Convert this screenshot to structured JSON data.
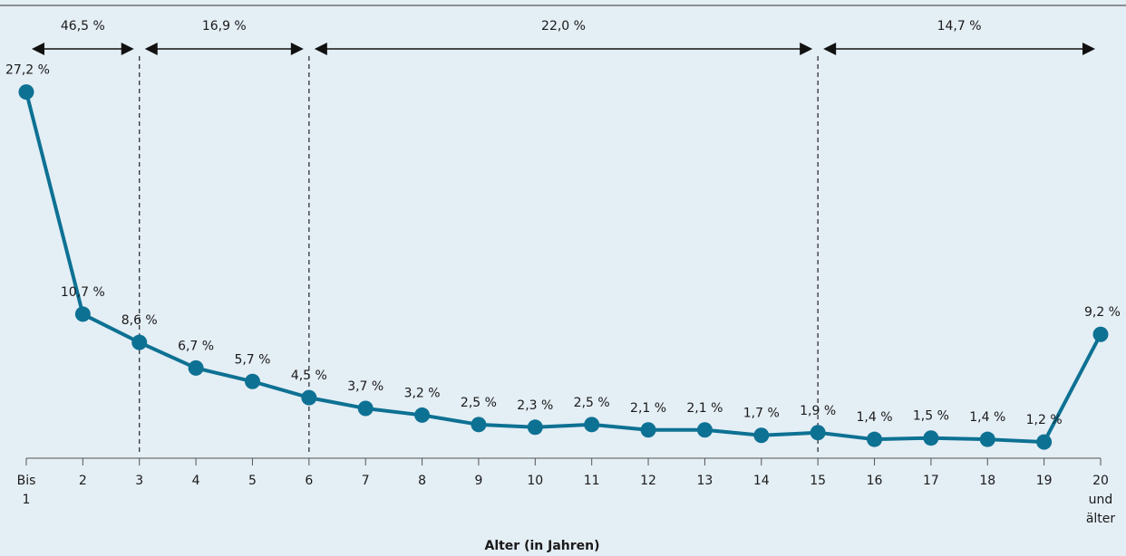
{
  "chart_data": {
    "type": "line",
    "xlabel": "Alter (in Jahren)",
    "ylabel": "",
    "categories": [
      "Bis 1",
      "2",
      "3",
      "4",
      "5",
      "6",
      "7",
      "8",
      "9",
      "10",
      "11",
      "12",
      "13",
      "14",
      "15",
      "16",
      "17",
      "18",
      "19",
      "20 und älter"
    ],
    "category_lines": [
      [
        "Bis",
        "1"
      ],
      [
        "2"
      ],
      [
        "3"
      ],
      [
        "4"
      ],
      [
        "5"
      ],
      [
        "6"
      ],
      [
        "7"
      ],
      [
        "8"
      ],
      [
        "9"
      ],
      [
        "10"
      ],
      [
        "11"
      ],
      [
        "12"
      ],
      [
        "13"
      ],
      [
        "14"
      ],
      [
        "15"
      ],
      [
        "16"
      ],
      [
        "17"
      ],
      [
        "18"
      ],
      [
        "19"
      ],
      [
        "20",
        "und",
        "älter"
      ]
    ],
    "values": [
      27.2,
      10.7,
      8.6,
      6.7,
      5.7,
      4.5,
      3.7,
      3.2,
      2.5,
      2.3,
      2.5,
      2.1,
      2.1,
      1.7,
      1.9,
      1.4,
      1.5,
      1.4,
      1.2,
      9.2
    ],
    "value_labels": [
      "27,2 %",
      "10,7 %",
      "8,6 %",
      "6,7 %",
      "5,7 %",
      "4,5 %",
      "3,7 %",
      "3,2 %",
      "2,5 %",
      "2,3 %",
      "2,5 %",
      "2,1 %",
      "2,1 %",
      "1,7 %",
      "1,9 %",
      "1,4 %",
      "1,5 %",
      "1,4 %",
      "1,2 %",
      "9,2 %"
    ],
    "ylim": [
      0,
      30
    ],
    "grid": false,
    "line_color": "#0d7193",
    "background_color": "#e4eef5",
    "ranges": [
      {
        "from": "Bis 1",
        "to": "3",
        "label": "46,5 %"
      },
      {
        "from": "3",
        "to": "6",
        "label": "16,9 %"
      },
      {
        "from": "6",
        "to": "15",
        "label": "22,0 %"
      },
      {
        "from": "15",
        "to": "20 und älter",
        "label": "14,7 %"
      }
    ],
    "divider_categories": [
      "3",
      "6",
      "15"
    ]
  }
}
